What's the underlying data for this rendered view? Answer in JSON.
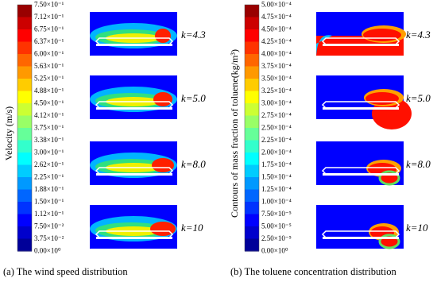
{
  "panel_a": {
    "colorbar_title": "Velocity (m/s)",
    "colorbar_labels": [
      "7.50×10⁻¹",
      "7.12×10⁻¹",
      "6.75×10⁻¹",
      "6.37×10⁻¹",
      "6.00×10⁻¹",
      "5.63×10⁻¹",
      "5.25×10⁻¹",
      "4.88×10⁻¹",
      "4.50×10⁻¹",
      "4.12×10⁻¹",
      "3.75×10⁻¹",
      "3.38×10⁻¹",
      "3.00×10⁻¹",
      "2.62×10⁻¹",
      "2.25×10⁻¹",
      "1.88×10⁻¹",
      "1.50×10⁻¹",
      "1.12×10⁻¹",
      "7.50×10⁻²",
      "3.75×10⁻²",
      "0.00×10⁰"
    ],
    "k_labels": [
      "k=4.3",
      "k=5.0",
      "k=8.0",
      "k=10"
    ],
    "caption": "(a) The wind speed distribution"
  },
  "panel_b": {
    "colorbar_title": "Contours of mass fraction of toluene(kg/m³)",
    "colorbar_labels": [
      "5.00×10⁻⁴",
      "4.75×10⁻⁴",
      "4.50×10⁻⁴",
      "4.25×10⁻⁴",
      "4.00×10⁻⁴",
      "3.75×10⁻⁴",
      "3.50×10⁻⁴",
      "3.25×10⁻⁴",
      "3.00×10⁻⁴",
      "2.75×10⁻⁴",
      "2.50×10⁻⁴",
      "2.25×10⁻⁴",
      "2.00×10⁻⁴",
      "1.75×10⁻⁴",
      "1.50×10⁻⁴",
      "1.25×10⁻⁴",
      "1.00×10⁻⁴",
      "7.50×10⁻⁵",
      "5.00×10⁻⁵",
      "2.50×10⁻⁵",
      "0.00×10⁰"
    ],
    "k_labels": [
      "k=4.3",
      "k=5.0",
      "k=8.0",
      "k=10"
    ],
    "caption": "(b) The toluene concentration distribution"
  }
}
